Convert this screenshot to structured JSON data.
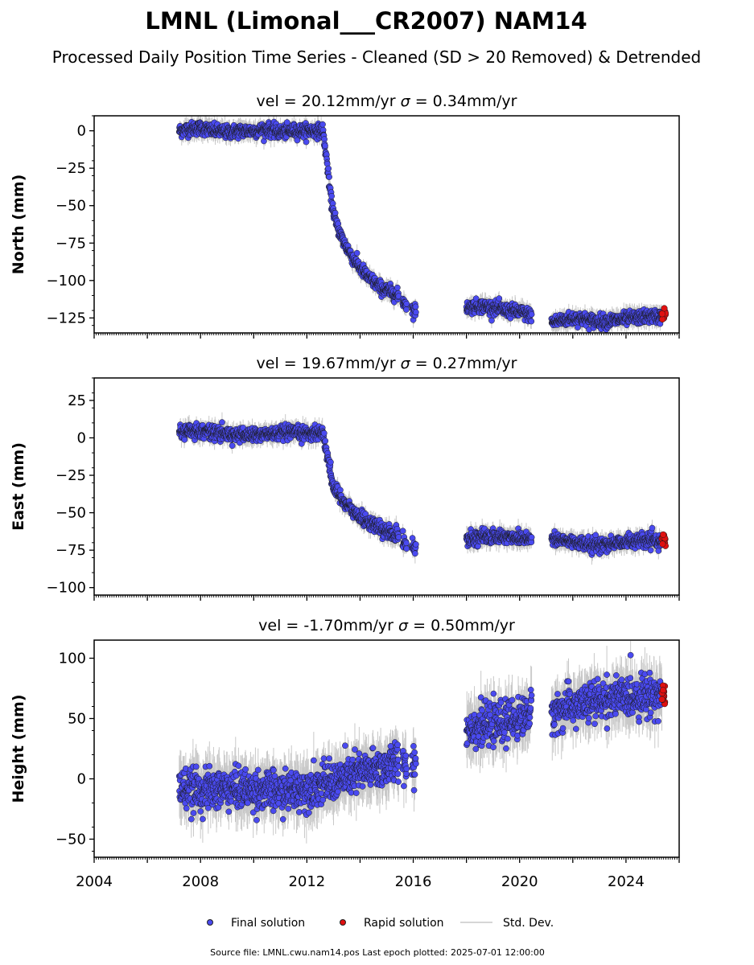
{
  "figure": {
    "title": "LMNL (Limonal___CR2007) NAM14",
    "subtitle": "Processed Daily Position Time Series - Cleaned (SD > 20 Removed) & Detrended",
    "source": "Source file: LMNL.cwu.nam14.pos  Last epoch plotted: 2025-07-01 12:00:00"
  },
  "legend": {
    "final": "Final solution",
    "rapid": "Rapid solution",
    "std": "Std. Dev."
  },
  "colors": {
    "final": "#4a4af0",
    "rapid": "#e01010",
    "std": "#c8c8c8"
  },
  "chart_data": [
    {
      "type": "scatter",
      "title": "vel = 20.12mm/yr   σ = 0.34mm/yr",
      "vel_text": "vel = 20.12mm/yr",
      "sigma_text": " = 0.34mm/yr",
      "ylabel": "North (mm)",
      "xlim": [
        2004.0,
        2026.0
      ],
      "ylim": [
        -135,
        10
      ],
      "yticks": [
        0,
        -25,
        -50,
        -75,
        -100,
        -125
      ],
      "final_trend": [
        [
          2007.2,
          0
        ],
        [
          2007.5,
          1
        ],
        [
          2008.0,
          2
        ],
        [
          2008.5,
          0
        ],
        [
          2009.0,
          -1
        ],
        [
          2009.5,
          0
        ],
        [
          2010.0,
          0
        ],
        [
          2010.5,
          1
        ],
        [
          2011.0,
          -1
        ],
        [
          2011.5,
          0
        ],
        [
          2012.0,
          0
        ],
        [
          2012.6,
          0
        ],
        [
          2012.75,
          -20
        ],
        [
          2012.9,
          -45
        ],
        [
          2013.1,
          -62
        ],
        [
          2013.4,
          -75
        ],
        [
          2013.8,
          -87
        ],
        [
          2014.3,
          -98
        ],
        [
          2014.8,
          -105
        ],
        [
          2015.2,
          -108
        ],
        [
          2015.4,
          -110
        ],
        [
          2015.7,
          -115
        ],
        [
          2016.0,
          -120
        ],
        [
          2018.0,
          -118
        ],
        [
          2018.5,
          -117
        ],
        [
          2019.0,
          -118
        ],
        [
          2019.5,
          -120
        ],
        [
          2020.0,
          -121
        ],
        [
          2020.4,
          -123
        ],
        [
          2021.2,
          -128
        ],
        [
          2021.7,
          -126
        ],
        [
          2022.2,
          -125
        ],
        [
          2022.8,
          -127
        ],
        [
          2023.3,
          -127
        ],
        [
          2023.8,
          -126
        ],
        [
          2024.3,
          -125
        ],
        [
          2024.8,
          -124
        ],
        [
          2025.3,
          -124
        ]
      ],
      "segments": [
        [
          2007.2,
          2015.45
        ],
        [
          2015.6,
          2015.75
        ],
        [
          2015.95,
          2016.1
        ],
        [
          2018.0,
          2020.45
        ],
        [
          2021.2,
          2025.35
        ]
      ],
      "scatter_sd": 2.2,
      "rapid": {
        "x": [
          2025.35,
          2025.5
        ],
        "y_center": -124,
        "spread": 2
      }
    },
    {
      "type": "scatter",
      "title": "vel = 19.67mm/yr   σ = 0.27mm/yr",
      "vel_text": "vel = 19.67mm/yr",
      "sigma_text": " = 0.27mm/yr",
      "ylabel": "East (mm)",
      "xlim": [
        2004.0,
        2026.0
      ],
      "ylim": [
        -105,
        40
      ],
      "yticks": [
        25,
        0,
        -25,
        -50,
        -75,
        -100
      ],
      "final_trend": [
        [
          2007.2,
          4
        ],
        [
          2008.0,
          5
        ],
        [
          2009.0,
          2
        ],
        [
          2010.0,
          2
        ],
        [
          2011.0,
          3
        ],
        [
          2012.0,
          3
        ],
        [
          2012.6,
          4
        ],
        [
          2012.8,
          -15
        ],
        [
          2013.0,
          -33
        ],
        [
          2013.4,
          -43
        ],
        [
          2013.9,
          -52
        ],
        [
          2014.5,
          -58
        ],
        [
          2015.0,
          -63
        ],
        [
          2015.4,
          -65
        ],
        [
          2015.7,
          -70
        ],
        [
          2016.0,
          -73
        ],
        [
          2018.0,
          -67
        ],
        [
          2018.8,
          -66
        ],
        [
          2019.5,
          -66
        ],
        [
          2020.4,
          -67
        ],
        [
          2021.2,
          -68
        ],
        [
          2022.0,
          -69
        ],
        [
          2022.7,
          -72
        ],
        [
          2023.3,
          -71
        ],
        [
          2024.0,
          -69
        ],
        [
          2025.3,
          -69
        ]
      ],
      "segments": [
        [
          2007.2,
          2015.45
        ],
        [
          2015.6,
          2015.75
        ],
        [
          2015.95,
          2016.1
        ],
        [
          2018.0,
          2020.45
        ],
        [
          2021.2,
          2025.35
        ]
      ],
      "scatter_sd": 2.3,
      "rapid": {
        "x": [
          2025.35,
          2025.5
        ],
        "y_center": -68,
        "spread": 2
      }
    },
    {
      "type": "scatter",
      "title": "vel = -1.70mm/yr   σ = 0.50mm/yr",
      "vel_text": "vel = -1.70mm/yr",
      "sigma_text": " = 0.50mm/yr",
      "ylabel": "Height (mm)",
      "xlim": [
        2004.0,
        2026.0
      ],
      "ylim": [
        -65,
        115
      ],
      "yticks": [
        100,
        50,
        0,
        -50
      ],
      "xticks": [
        2004,
        2008,
        2012,
        2016,
        2020,
        2024
      ],
      "final_trend": [
        [
          2007.2,
          -8
        ],
        [
          2008.0,
          -10
        ],
        [
          2009.0,
          -8
        ],
        [
          2010.0,
          -9
        ],
        [
          2011.0,
          -11
        ],
        [
          2012.0,
          -8
        ],
        [
          2013.0,
          -2
        ],
        [
          2014.0,
          5
        ],
        [
          2015.0,
          10
        ],
        [
          2015.5,
          15
        ],
        [
          2016.0,
          12
        ],
        [
          2018.0,
          42
        ],
        [
          2019.0,
          45
        ],
        [
          2020.0,
          50
        ],
        [
          2020.4,
          55
        ],
        [
          2021.2,
          55
        ],
        [
          2022.0,
          60
        ],
        [
          2023.0,
          65
        ],
        [
          2024.0,
          68
        ],
        [
          2025.3,
          70
        ]
      ],
      "segments": [
        [
          2007.2,
          2015.45
        ],
        [
          2015.6,
          2015.75
        ],
        [
          2015.95,
          2016.1
        ],
        [
          2018.0,
          2020.45
        ],
        [
          2021.2,
          2025.35
        ]
      ],
      "scatter_sd": 8,
      "rapid": {
        "x": [
          2025.35,
          2025.5
        ],
        "y_center": 70,
        "spread": 5
      }
    }
  ]
}
